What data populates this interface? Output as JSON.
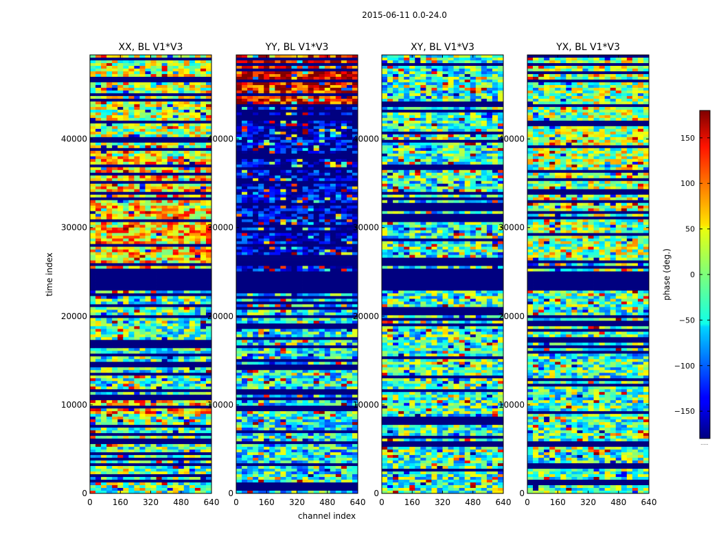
{
  "chart_data": {
    "type": "heatmap",
    "suptitle": "2015-06-11 0.0-24.0",
    "xlabel": "channel index",
    "ylabel": "time index",
    "xlim": [
      0,
      640
    ],
    "ylim": [
      0,
      49500
    ],
    "xticks": [
      0,
      160,
      320,
      480,
      640
    ],
    "yticks": [
      0,
      10000,
      20000,
      30000,
      40000
    ],
    "colormap": "jet",
    "colorbar": {
      "label": "phase (deg.)",
      "range": [
        -180,
        180
      ],
      "ticks": [
        150,
        100,
        50,
        0,
        -50,
        -100,
        -150
      ],
      "tick_labels": [
        "150",
        "100",
        "50",
        "0",
        "−50",
        "−100",
        "−150"
      ],
      "offset_text": "......"
    },
    "panels": [
      {
        "title": "XX, BL V1*V3",
        "dominant_phase_deg": 20,
        "description_segments": [
          {
            "t_start": 0,
            "t_end": 9000,
            "phase": -10
          },
          {
            "t_start": 9000,
            "t_end": 10500,
            "phase": 75
          },
          {
            "t_start": 10500,
            "t_end": 23000,
            "phase": -20
          },
          {
            "t_start": 23000,
            "t_end": 25000,
            "phase": -180
          },
          {
            "t_start": 25000,
            "t_end": 38000,
            "phase": 60
          },
          {
            "t_start": 38000,
            "t_end": 49500,
            "phase": 20
          }
        ]
      },
      {
        "title": "YY, BL V1*V3",
        "dominant_phase_deg": -130,
        "description_segments": [
          {
            "t_start": 0,
            "t_end": 23000,
            "phase": -40
          },
          {
            "t_start": 23000,
            "t_end": 25000,
            "phase": -180
          },
          {
            "t_start": 25000,
            "t_end": 44000,
            "phase": -160
          },
          {
            "t_start": 44000,
            "t_end": 49500,
            "phase": 140
          }
        ]
      },
      {
        "title": "XY, BL V1*V3",
        "dominant_phase_deg": -20,
        "description_segments": [
          {
            "t_start": 0,
            "t_end": 23000,
            "phase": -20
          },
          {
            "t_start": 23000,
            "t_end": 25000,
            "phase": -180
          },
          {
            "t_start": 25000,
            "t_end": 49500,
            "phase": -30
          }
        ]
      },
      {
        "title": "YX, BL V1*V3",
        "dominant_phase_deg": -20,
        "description_segments": [
          {
            "t_start": 0,
            "t_end": 23000,
            "phase": -20
          },
          {
            "t_start": 23000,
            "t_end": 25000,
            "phase": -180
          },
          {
            "t_start": 25000,
            "t_end": 49500,
            "phase": 10
          }
        ]
      }
    ]
  }
}
